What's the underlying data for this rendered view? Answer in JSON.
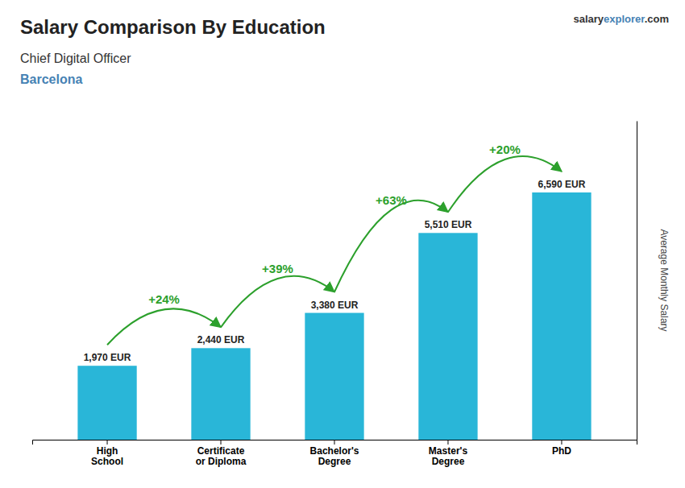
{
  "chart_data": {
    "type": "bar",
    "title": "Salary Comparison By Education",
    "subtitle": [
      "Chief Digital Officer",
      "Barcelona"
    ],
    "website": [
      "salary",
      "explorer",
      ".com"
    ],
    "y_label": "Average Monthly Salary",
    "categories": [
      "High\nSchool",
      "Certificate\nor Diploma",
      "Bachelor's\nDegree",
      "Master's\nDegree",
      "PhD"
    ],
    "values": [
      1970,
      2440,
      3380,
      5510,
      6590
    ],
    "value_labels": [
      "1,970 EUR",
      "2,440 EUR",
      "3,380 EUR",
      "5,510 EUR",
      "6,590 EUR"
    ],
    "data_labels": true,
    "change_labels": [
      "+24%",
      "+39%",
      "+63%",
      "+20%"
    ],
    "color": "#29b6d8",
    "ylim": [
      0,
      8500
    ],
    "grid": false,
    "tick_labels": "x"
  }
}
